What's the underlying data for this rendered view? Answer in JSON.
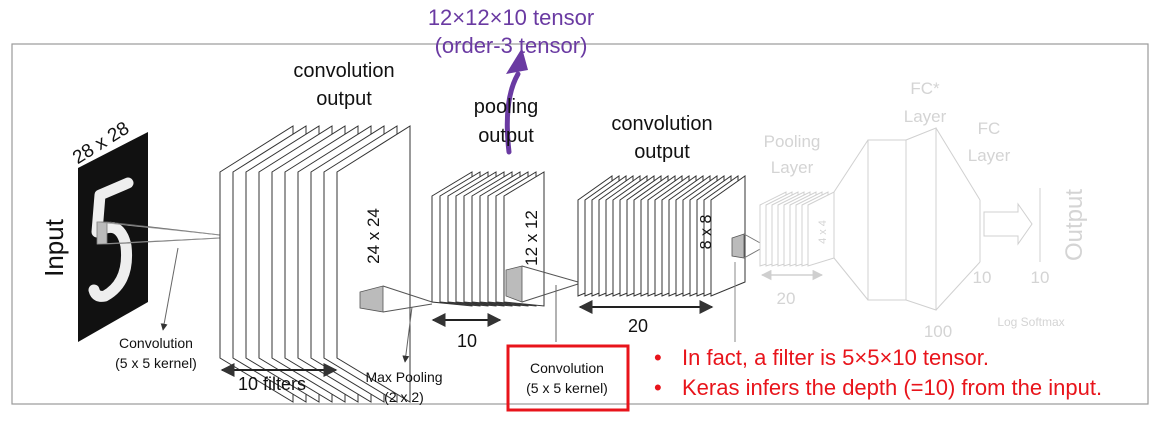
{
  "title_overlay": {
    "line1": "12×12×10 tensor",
    "line2": "(order-3 tensor)",
    "color": "#6a3aa2"
  },
  "diagram": {
    "input_label": "Input",
    "input_size": "28 x 28",
    "conv1_output": [
      "convolution",
      "output"
    ],
    "conv1_kernel": [
      "Convolution",
      "(5 x 5 kernel)"
    ],
    "conv1_map_size": "24 x 24",
    "conv1_filters": "10 filters",
    "pool1_output": [
      "pooling",
      "output"
    ],
    "pool1_label": [
      "Max Pooling",
      "(2 x 2)"
    ],
    "pool1_map_size": "12 x 12",
    "pool1_depth": "10",
    "conv2_kernel": [
      "Convolution",
      "(5 x 5 kernel)"
    ],
    "conv2_output": [
      "convolution",
      "output"
    ],
    "conv2_map_size": "8 x 8",
    "conv2_depth": "20",
    "pool2_label": [
      "Pooling",
      "Layer"
    ],
    "pool2_size": "4 x 4",
    "pool2_depth": "20",
    "fc1_label": [
      "FC*",
      "Layer"
    ],
    "fc1_size": "100",
    "fc2_label": [
      "FC",
      "Layer"
    ],
    "fc2_size": "10",
    "softmax_label": "Log Softmax",
    "softmax_size": "10",
    "output_label": "Output"
  },
  "notes": {
    "items": [
      "In fact, a filter is 5×5×10 tensor.",
      "Keras infers the depth (=10) from the input."
    ],
    "color": "#e8141b"
  },
  "highlight_color": "#e8141b",
  "arrow_color": "#6a3aa2"
}
